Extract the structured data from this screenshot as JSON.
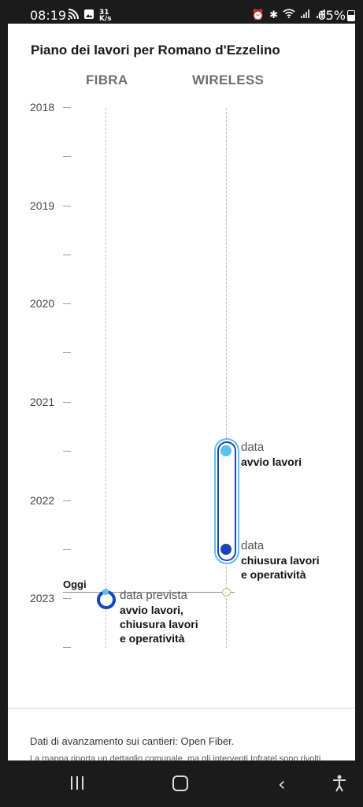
{
  "status_bar": {
    "time": "08:19",
    "speed_value": "31",
    "speed_unit": "K/s",
    "battery": "65%"
  },
  "page": {
    "title": "Piano dei lavori per Romano d'Ezzelino",
    "columns": [
      "FIBRA",
      "WIRELESS"
    ],
    "years": [
      "2018",
      "2019",
      "2020",
      "2021",
      "2022",
      "2023"
    ],
    "today_label": "Oggi",
    "wireless": {
      "start_label_1": "data",
      "start_label_2": "avvio lavori",
      "end_label_1": "data",
      "end_label_2": "chiusura lavori",
      "end_label_3": "e operatività"
    },
    "fibra": {
      "label_1": "data prevista",
      "label_2": "avvio lavori,",
      "label_3": "chiusura lavori",
      "label_4": "e operatività"
    },
    "source": "Dati di avanzamento sui cantieri: Open Fiber.",
    "note": "La mappa riporta un dettaglio comunale, ma gli interventi Infratel sono rivolti"
  },
  "colors": {
    "dark_blue": "#1a45b8",
    "light_blue": "#5bc0ec"
  }
}
